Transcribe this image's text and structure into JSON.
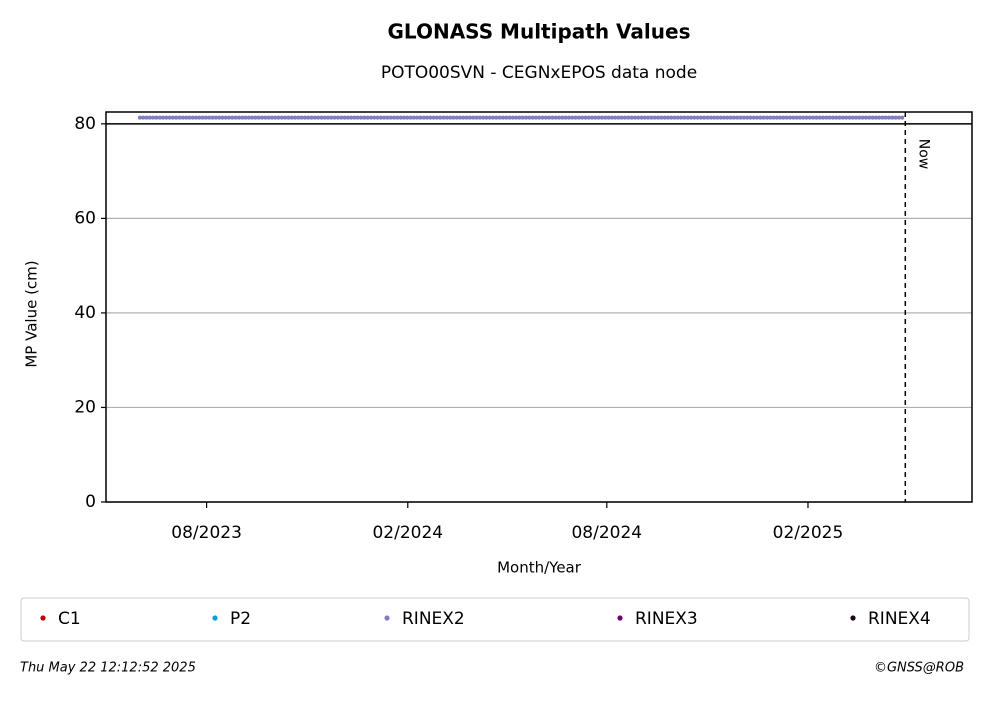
{
  "chart_data": {
    "type": "scatter",
    "title": "GLONASS Multipath Values",
    "subtitle": "POTO00SVN - CEGNxEPOS data node",
    "x_label": "Month/Year",
    "y_label": "MP Value (cm)",
    "x": [
      "2023-06",
      "2023-07",
      "2023-08",
      "2023-09",
      "2023-10",
      "2023-11",
      "2023-12",
      "2024-01",
      "2024-02",
      "2024-03",
      "2024-04",
      "2024-05",
      "2024-06",
      "2024-07",
      "2024-08",
      "2024-09",
      "2024-10",
      "2024-11",
      "2024-12",
      "2025-01",
      "2025-02",
      "2025-03",
      "2025-04",
      "2025-05"
    ],
    "series": [
      {
        "name": "C1",
        "color": "#c00000",
        "values": [
          null,
          null,
          null,
          null,
          null,
          null,
          null,
          null,
          null,
          null,
          null,
          null,
          null,
          null,
          null,
          null,
          null,
          null,
          null,
          null,
          null,
          null,
          null,
          null
        ]
      },
      {
        "name": "P2",
        "color": "#00a0e0",
        "values": [
          null,
          null,
          null,
          null,
          null,
          null,
          null,
          null,
          null,
          null,
          null,
          null,
          null,
          null,
          null,
          null,
          null,
          null,
          null,
          null,
          null,
          null,
          null,
          null
        ]
      },
      {
        "name": "RINEX2",
        "color": "#7f7fbf",
        "values": [
          81.3,
          81.3,
          81.3,
          81.3,
          81.3,
          81.3,
          81.3,
          81.3,
          81.3,
          81.3,
          81.3,
          81.3,
          81.3,
          81.3,
          81.3,
          81.3,
          81.3,
          81.3,
          81.3,
          81.3,
          81.3,
          81.3,
          81.3,
          81.3
        ]
      },
      {
        "name": "RINEX3",
        "color": "#700070",
        "values": [
          null,
          null,
          null,
          null,
          null,
          null,
          null,
          null,
          null,
          null,
          null,
          null,
          null,
          null,
          null,
          null,
          null,
          null,
          null,
          null,
          null,
          null,
          null,
          null
        ]
      },
      {
        "name": "RINEX4",
        "color": "#200020",
        "values": [
          null,
          null,
          null,
          null,
          null,
          null,
          null,
          null,
          null,
          null,
          null,
          null,
          null,
          null,
          null,
          null,
          null,
          null,
          null,
          null,
          null,
          null,
          null,
          null
        ]
      }
    ],
    "xlim": [
      "2023-05",
      "2025-07"
    ],
    "xticks": [
      {
        "value": "2023-08",
        "label": "08/2023"
      },
      {
        "value": "2024-02",
        "label": "02/2024"
      },
      {
        "value": "2024-08",
        "label": "08/2024"
      },
      {
        "value": "2025-02",
        "label": "02/2025"
      }
    ],
    "ylim": [
      0,
      82.5
    ],
    "yticks": [
      0,
      20,
      40,
      60,
      80
    ],
    "hline": 80,
    "grid": true,
    "annotation": {
      "text": "Now",
      "x": "2025-05"
    },
    "timestamp": "Thu May 22 12:12:52 2025",
    "credit": "©GNSS@ROB"
  }
}
